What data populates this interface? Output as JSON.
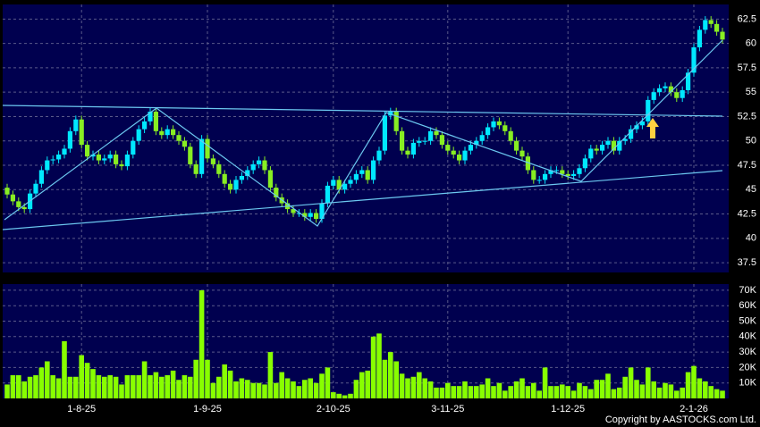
{
  "chart_data": {
    "type": "candlestick",
    "categories": [
      null,
      null,
      null,
      null,
      null,
      null,
      null,
      null,
      null,
      null,
      null,
      null,
      null,
      "1-8-25",
      null,
      null,
      null,
      null,
      null,
      null,
      null,
      null,
      null,
      null,
      null,
      null,
      null,
      null,
      null,
      null,
      null,
      null,
      null,
      null,
      null,
      "1-9-25",
      null,
      null,
      null,
      null,
      null,
      null,
      null,
      null,
      null,
      null,
      null,
      null,
      null,
      null,
      null,
      null,
      null,
      null,
      null,
      null,
      null,
      "2-10-25",
      null,
      null,
      null,
      null,
      null,
      null,
      null,
      null,
      null,
      null,
      null,
      null,
      null,
      null,
      null,
      null,
      null,
      null,
      null,
      "3-11-25",
      null,
      null,
      null,
      null,
      null,
      null,
      null,
      null,
      null,
      null,
      null,
      null,
      null,
      null,
      null,
      null,
      null,
      null,
      null,
      null,
      "1-12-25",
      null,
      null,
      null,
      null,
      null,
      null,
      null,
      null,
      null,
      null,
      null,
      null,
      null,
      null,
      null,
      null,
      null,
      null,
      null,
      null,
      null,
      "2-1-26",
      null,
      null,
      null,
      null,
      null
    ],
    "open": [
      45.2,
      44.5,
      43.8,
      43.2,
      43.0,
      44.6,
      45.6,
      47.0,
      48.0,
      48.1,
      48.6,
      49.2,
      51.0,
      52.2,
      49.6,
      48.4,
      48.6,
      48.0,
      48.2,
      48.6,
      47.6,
      47.4,
      48.6,
      50.0,
      51.2,
      52.0,
      53.0,
      51.0,
      50.6,
      51.2,
      50.6,
      50.0,
      49.4,
      47.6,
      46.6,
      50.2,
      48.2,
      47.6,
      46.6,
      45.6,
      45.0,
      46.0,
      46.4,
      47.0,
      47.6,
      48.0,
      47.0,
      45.2,
      44.2,
      43.6,
      43.0,
      42.6,
      42.6,
      42.2,
      42.6,
      42.0,
      43.6,
      45.4,
      46.0,
      45.0,
      45.6,
      46.0,
      46.6,
      47.0,
      46.0,
      48.0,
      49.0,
      52.6,
      53.0,
      51.0,
      49.0,
      48.6,
      49.8,
      50.0,
      50.0,
      51.0,
      50.6,
      49.6,
      49.0,
      48.6,
      48.0,
      49.0,
      49.6,
      50.0,
      50.6,
      51.4,
      52.0,
      51.6,
      51.0,
      50.0,
      49.0,
      48.4,
      47.0,
      46.0,
      46.0,
      46.6,
      47.0,
      47.0,
      46.6,
      46.4,
      46.6,
      47.2,
      48.2,
      49.2,
      49.0,
      49.6,
      50.0,
      49.0,
      50.0,
      50.2,
      51.2,
      51.6,
      52.0,
      54.2,
      55.0,
      55.4,
      55.6,
      55.0,
      54.4,
      55.2,
      57.0,
      59.6,
      61.4,
      62.4,
      62.0,
      61.2
    ],
    "high": [
      45.6,
      44.9,
      44.2,
      43.6,
      45.0,
      46.0,
      47.4,
      48.4,
      48.5,
      49.0,
      49.6,
      51.4,
      52.6,
      52.6,
      50.0,
      49.0,
      49.0,
      48.6,
      49.0,
      49.0,
      48.0,
      49.0,
      50.4,
      51.6,
      52.4,
      53.4,
      53.4,
      51.4,
      51.6,
      51.6,
      51.0,
      50.4,
      49.8,
      48.0,
      50.6,
      50.6,
      48.6,
      48.0,
      47.0,
      46.0,
      46.4,
      46.8,
      47.4,
      48.0,
      48.4,
      48.4,
      47.4,
      45.6,
      44.6,
      44.0,
      43.4,
      43.0,
      43.0,
      43.0,
      43.0,
      44.0,
      45.8,
      46.4,
      46.4,
      46.0,
      46.4,
      47.0,
      47.4,
      47.4,
      48.4,
      49.4,
      53.0,
      53.4,
      53.4,
      51.4,
      49.4,
      50.2,
      50.4,
      50.4,
      51.4,
      51.4,
      51.0,
      50.0,
      49.4,
      49.0,
      49.4,
      50.0,
      50.4,
      51.0,
      51.8,
      52.4,
      52.4,
      52.0,
      51.4,
      50.4,
      49.4,
      48.8,
      47.4,
      46.4,
      47.0,
      47.4,
      47.4,
      47.4,
      47.0,
      47.0,
      47.6,
      48.6,
      49.6,
      49.6,
      50.0,
      50.4,
      50.4,
      50.4,
      50.6,
      51.6,
      52.0,
      52.4,
      54.6,
      55.4,
      55.8,
      56.0,
      56.0,
      55.4,
      55.6,
      57.4,
      60.0,
      61.8,
      62.8,
      62.8,
      62.4,
      61.6
    ],
    "low": [
      44.1,
      43.4,
      42.8,
      42.6,
      42.6,
      44.2,
      45.2,
      46.6,
      47.6,
      47.7,
      48.2,
      48.8,
      50.6,
      49.2,
      48.0,
      48.0,
      47.6,
      47.6,
      47.8,
      47.2,
      47.0,
      47.0,
      48.2,
      49.6,
      50.8,
      51.6,
      50.6,
      50.2,
      50.2,
      50.2,
      49.6,
      49.0,
      47.2,
      46.2,
      46.2,
      47.8,
      47.2,
      46.2,
      45.2,
      44.6,
      44.6,
      45.6,
      46.0,
      46.6,
      47.2,
      46.6,
      44.8,
      43.8,
      43.2,
      42.6,
      42.2,
      42.2,
      41.8,
      41.8,
      41.6,
      41.6,
      43.2,
      45.0,
      44.6,
      44.6,
      45.2,
      45.6,
      46.2,
      45.6,
      45.6,
      47.6,
      48.6,
      52.2,
      50.6,
      48.6,
      48.2,
      48.2,
      49.4,
      49.6,
      49.6,
      50.2,
      49.2,
      48.6,
      48.2,
      47.6,
      47.6,
      48.6,
      49.2,
      49.6,
      50.2,
      51.0,
      51.2,
      50.6,
      49.6,
      48.6,
      48.0,
      46.6,
      45.6,
      45.6,
      45.6,
      46.2,
      46.6,
      46.2,
      46.0,
      46.0,
      46.2,
      46.8,
      47.8,
      48.6,
      48.6,
      49.2,
      48.6,
      48.6,
      49.6,
      49.8,
      50.8,
      51.2,
      51.6,
      53.8,
      54.6,
      55.0,
      54.6,
      54.0,
      54.0,
      54.8,
      56.6,
      59.2,
      61.0,
      61.6,
      60.8,
      60.0
    ],
    "close": [
      44.5,
      43.8,
      43.2,
      43.0,
      44.6,
      45.6,
      47.0,
      48.0,
      48.1,
      48.6,
      49.2,
      51.0,
      52.2,
      49.6,
      48.4,
      48.6,
      48.0,
      48.2,
      48.6,
      47.6,
      47.4,
      48.6,
      50.0,
      51.2,
      52.0,
      53.0,
      51.0,
      50.6,
      51.2,
      50.6,
      50.0,
      49.4,
      47.6,
      46.6,
      50.2,
      48.2,
      47.6,
      46.6,
      45.6,
      45.0,
      46.0,
      46.4,
      47.0,
      47.6,
      48.0,
      47.0,
      45.2,
      44.2,
      43.6,
      43.0,
      42.6,
      42.6,
      42.2,
      42.6,
      42.0,
      43.6,
      45.4,
      46.0,
      45.0,
      45.6,
      46.0,
      46.6,
      47.0,
      46.0,
      48.0,
      49.0,
      52.6,
      53.0,
      51.0,
      49.0,
      48.6,
      49.8,
      50.0,
      50.0,
      51.0,
      50.6,
      49.6,
      49.0,
      48.6,
      48.0,
      49.0,
      49.6,
      50.0,
      50.6,
      51.4,
      52.0,
      51.6,
      51.0,
      50.0,
      49.0,
      48.4,
      47.0,
      46.0,
      46.0,
      46.6,
      47.0,
      47.0,
      46.6,
      46.4,
      46.6,
      47.2,
      48.2,
      49.2,
      49.0,
      49.6,
      50.0,
      49.0,
      50.0,
      50.2,
      51.2,
      51.6,
      52.0,
      54.2,
      55.0,
      55.4,
      55.6,
      55.0,
      54.4,
      55.2,
      57.0,
      59.6,
      61.4,
      62.4,
      62.0,
      61.2,
      60.4
    ],
    "up_color": "#00e8ff",
    "down_color": "#88ee22",
    "ylim": [
      36.5,
      64
    ],
    "yticks": [
      37.5,
      40,
      42.5,
      45,
      47.5,
      50,
      52.5,
      55,
      57.5,
      60,
      62.5
    ],
    "grid": true,
    "volume": {
      "color": "#88ff00",
      "ylim": [
        0,
        74000
      ],
      "yticks": [
        {
          "value": 10000,
          "label": "10K"
        },
        {
          "value": 20000,
          "label": "20K"
        },
        {
          "value": 30000,
          "label": "30K"
        },
        {
          "value": 40000,
          "label": "40K"
        },
        {
          "value": 50000,
          "label": "50K"
        },
        {
          "value": 60000,
          "label": "60K"
        },
        {
          "value": 70000,
          "label": "70K"
        }
      ],
      "values": [
        9000,
        15000,
        15000,
        11000,
        14000,
        15000,
        20000,
        24000,
        15000,
        13000,
        37000,
        14000,
        14000,
        28000,
        23000,
        19000,
        15000,
        14000,
        15000,
        14000,
        9000,
        15000,
        15000,
        15000,
        24000,
        15000,
        17000,
        14000,
        15000,
        18000,
        12000,
        15000,
        14000,
        25000,
        70000,
        25000,
        10000,
        14000,
        22000,
        18000,
        11000,
        13000,
        12000,
        10000,
        10000,
        9000,
        30000,
        10000,
        17000,
        13000,
        11000,
        8000,
        12000,
        13000,
        10000,
        16000,
        20000,
        4000,
        3000,
        2000,
        3000,
        12000,
        17000,
        18000,
        40000,
        42000,
        25000,
        30000,
        24000,
        16000,
        13000,
        14000,
        17000,
        13000,
        11000,
        7000,
        7000,
        10000,
        8000,
        8000,
        11000,
        8000,
        8000,
        9000,
        13000,
        8000,
        10000,
        5000,
        8000,
        11000,
        13000,
        8000,
        10000,
        5000,
        20000,
        8000,
        8000,
        9000,
        8000,
        5000,
        10000,
        8000,
        6000,
        12000,
        12000,
        16000,
        6000,
        7000,
        14000,
        20000,
        12000,
        9000,
        20000,
        11000,
        7000,
        10000,
        9000,
        5000,
        7000,
        17000,
        21000,
        13000,
        11000,
        8000,
        6000,
        5000
      ]
    },
    "copyright": "Copyright by AASTOCKS.com Ltd."
  }
}
